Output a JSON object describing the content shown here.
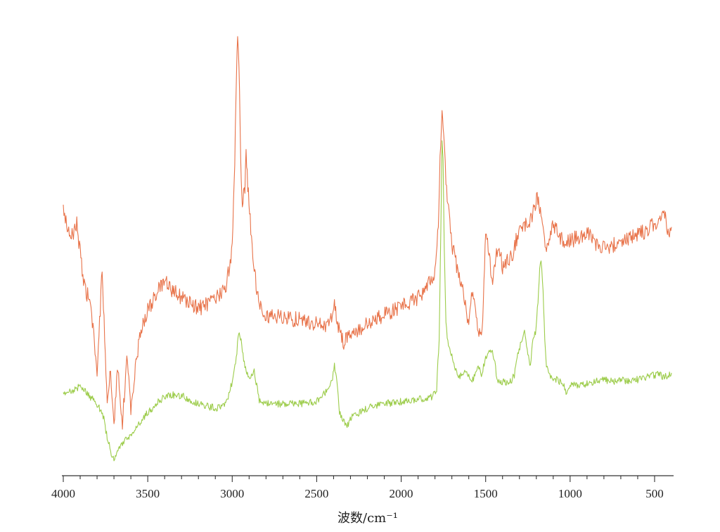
{
  "chart_data": {
    "type": "line",
    "title": "",
    "xlabel": "波数/cm⁻¹",
    "ylabel": "",
    "xlim": [
      4000,
      400
    ],
    "x_reversed": true,
    "ylim": [
      0,
      1
    ],
    "grid": false,
    "legend": "none",
    "x_ticks": [
      4000,
      3500,
      3000,
      2500,
      2000,
      1500,
      1000,
      500
    ],
    "x_tick_labels": [
      "4000",
      "3500",
      "3000",
      "2500",
      "2000",
      "1500",
      "1000",
      "500"
    ],
    "series": [
      {
        "color": "#e8734a",
        "noise": 0.018,
        "points": [
          [
            4000,
            0.59
          ],
          [
            3960,
            0.52
          ],
          [
            3920,
            0.56
          ],
          [
            3880,
            0.42
          ],
          [
            3840,
            0.38
          ],
          [
            3800,
            0.22
          ],
          [
            3770,
            0.45
          ],
          [
            3740,
            0.16
          ],
          [
            3720,
            0.22
          ],
          [
            3700,
            0.1
          ],
          [
            3680,
            0.24
          ],
          [
            3650,
            0.11
          ],
          [
            3620,
            0.26
          ],
          [
            3600,
            0.14
          ],
          [
            3570,
            0.24
          ],
          [
            3540,
            0.32
          ],
          [
            3500,
            0.36
          ],
          [
            3450,
            0.4
          ],
          [
            3400,
            0.425
          ],
          [
            3350,
            0.405
          ],
          [
            3300,
            0.39
          ],
          [
            3200,
            0.365
          ],
          [
            3100,
            0.385
          ],
          [
            3040,
            0.41
          ],
          [
            3000,
            0.5
          ],
          [
            2985,
            0.7
          ],
          [
            2975,
            0.9
          ],
          [
            2968,
            0.99
          ],
          [
            2960,
            0.92
          ],
          [
            2950,
            0.7
          ],
          [
            2940,
            0.61
          ],
          [
            2925,
            0.63
          ],
          [
            2918,
            0.72
          ],
          [
            2908,
            0.64
          ],
          [
            2890,
            0.55
          ],
          [
            2870,
            0.45
          ],
          [
            2840,
            0.38
          ],
          [
            2800,
            0.35
          ],
          [
            2700,
            0.345
          ],
          [
            2600,
            0.34
          ],
          [
            2500,
            0.33
          ],
          [
            2420,
            0.33
          ],
          [
            2395,
            0.38
          ],
          [
            2380,
            0.34
          ],
          [
            2360,
            0.31
          ],
          [
            2340,
            0.29
          ],
          [
            2300,
            0.305
          ],
          [
            2200,
            0.33
          ],
          [
            2100,
            0.35
          ],
          [
            2000,
            0.37
          ],
          [
            1900,
            0.39
          ],
          [
            1850,
            0.41
          ],
          [
            1800,
            0.45
          ],
          [
            1780,
            0.55
          ],
          [
            1770,
            0.7
          ],
          [
            1758,
            0.81
          ],
          [
            1748,
            0.76
          ],
          [
            1735,
            0.65
          ],
          [
            1720,
            0.59
          ],
          [
            1700,
            0.51
          ],
          [
            1680,
            0.48
          ],
          [
            1660,
            0.44
          ],
          [
            1640,
            0.42
          ],
          [
            1620,
            0.37
          ],
          [
            1600,
            0.33
          ],
          [
            1580,
            0.4
          ],
          [
            1560,
            0.35
          ],
          [
            1540,
            0.32
          ],
          [
            1525,
            0.29
          ],
          [
            1510,
            0.42
          ],
          [
            1500,
            0.54
          ],
          [
            1485,
            0.51
          ],
          [
            1470,
            0.46
          ],
          [
            1455,
            0.43
          ],
          [
            1440,
            0.48
          ],
          [
            1420,
            0.5
          ],
          [
            1400,
            0.46
          ],
          [
            1380,
            0.47
          ],
          [
            1360,
            0.48
          ],
          [
            1340,
            0.49
          ],
          [
            1320,
            0.52
          ],
          [
            1300,
            0.545
          ],
          [
            1270,
            0.555
          ],
          [
            1240,
            0.565
          ],
          [
            1210,
            0.59
          ],
          [
            1195,
            0.615
          ],
          [
            1180,
            0.595
          ],
          [
            1160,
            0.54
          ],
          [
            1140,
            0.51
          ],
          [
            1120,
            0.535
          ],
          [
            1100,
            0.555
          ],
          [
            1080,
            0.54
          ],
          [
            1050,
            0.525
          ],
          [
            1020,
            0.515
          ],
          [
            1000,
            0.52
          ],
          [
            960,
            0.525
          ],
          [
            920,
            0.53
          ],
          [
            900,
            0.545
          ],
          [
            870,
            0.525
          ],
          [
            840,
            0.505
          ],
          [
            800,
            0.51
          ],
          [
            760,
            0.505
          ],
          [
            720,
            0.515
          ],
          [
            680,
            0.52
          ],
          [
            640,
            0.525
          ],
          [
            600,
            0.535
          ],
          [
            560,
            0.54
          ],
          [
            520,
            0.555
          ],
          [
            480,
            0.56
          ],
          [
            440,
            0.575
          ],
          [
            420,
            0.54
          ],
          [
            400,
            0.55
          ]
        ]
      },
      {
        "color": "#9ccc4a",
        "noise": 0.008,
        "points": [
          [
            4000,
            0.17
          ],
          [
            3950,
            0.18
          ],
          [
            3900,
            0.19
          ],
          [
            3850,
            0.17
          ],
          [
            3800,
            0.15
          ],
          [
            3760,
            0.12
          ],
          [
            3740,
            0.07
          ],
          [
            3720,
            0.045
          ],
          [
            3700,
            0.02
          ],
          [
            3680,
            0.04
          ],
          [
            3650,
            0.06
          ],
          [
            3600,
            0.08
          ],
          [
            3550,
            0.105
          ],
          [
            3500,
            0.13
          ],
          [
            3450,
            0.15
          ],
          [
            3400,
            0.165
          ],
          [
            3350,
            0.17
          ],
          [
            3300,
            0.168
          ],
          [
            3250,
            0.16
          ],
          [
            3200,
            0.15
          ],
          [
            3100,
            0.14
          ],
          [
            3050,
            0.145
          ],
          [
            3020,
            0.17
          ],
          [
            2995,
            0.21
          ],
          [
            2980,
            0.24
          ],
          [
            2965,
            0.3
          ],
          [
            2955,
            0.31
          ],
          [
            2940,
            0.27
          ],
          [
            2925,
            0.23
          ],
          [
            2910,
            0.22
          ],
          [
            2890,
            0.205
          ],
          [
            2870,
            0.23
          ],
          [
            2855,
            0.19
          ],
          [
            2840,
            0.155
          ],
          [
            2800,
            0.15
          ],
          [
            2700,
            0.15
          ],
          [
            2600,
            0.15
          ],
          [
            2500,
            0.155
          ],
          [
            2450,
            0.175
          ],
          [
            2410,
            0.2
          ],
          [
            2395,
            0.235
          ],
          [
            2380,
            0.195
          ],
          [
            2365,
            0.13
          ],
          [
            2345,
            0.11
          ],
          [
            2320,
            0.1
          ],
          [
            2290,
            0.12
          ],
          [
            2250,
            0.13
          ],
          [
            2200,
            0.14
          ],
          [
            2100,
            0.15
          ],
          [
            2000,
            0.155
          ],
          [
            1900,
            0.16
          ],
          [
            1820,
            0.165
          ],
          [
            1790,
            0.185
          ],
          [
            1775,
            0.3
          ],
          [
            1765,
            0.55
          ],
          [
            1758,
            0.74
          ],
          [
            1752,
            0.7
          ],
          [
            1745,
            0.5
          ],
          [
            1735,
            0.33
          ],
          [
            1720,
            0.28
          ],
          [
            1700,
            0.26
          ],
          [
            1680,
            0.23
          ],
          [
            1660,
            0.215
          ],
          [
            1640,
            0.21
          ],
          [
            1620,
            0.22
          ],
          [
            1600,
            0.21
          ],
          [
            1580,
            0.2
          ],
          [
            1560,
            0.22
          ],
          [
            1540,
            0.23
          ],
          [
            1525,
            0.21
          ],
          [
            1500,
            0.255
          ],
          [
            1480,
            0.27
          ],
          [
            1460,
            0.265
          ],
          [
            1445,
            0.24
          ],
          [
            1430,
            0.2
          ],
          [
            1410,
            0.195
          ],
          [
            1390,
            0.2
          ],
          [
            1370,
            0.195
          ],
          [
            1350,
            0.2
          ],
          [
            1330,
            0.215
          ],
          [
            1310,
            0.26
          ],
          [
            1290,
            0.29
          ],
          [
            1270,
            0.31
          ],
          [
            1250,
            0.26
          ],
          [
            1235,
            0.23
          ],
          [
            1220,
            0.3
          ],
          [
            1205,
            0.31
          ],
          [
            1190,
            0.38
          ],
          [
            1180,
            0.45
          ],
          [
            1172,
            0.48
          ],
          [
            1160,
            0.4
          ],
          [
            1150,
            0.3
          ],
          [
            1140,
            0.24
          ],
          [
            1120,
            0.215
          ],
          [
            1100,
            0.21
          ],
          [
            1080,
            0.205
          ],
          [
            1060,
            0.2
          ],
          [
            1040,
            0.195
          ],
          [
            1020,
            0.175
          ],
          [
            1000,
            0.195
          ],
          [
            950,
            0.19
          ],
          [
            900,
            0.195
          ],
          [
            850,
            0.2
          ],
          [
            800,
            0.205
          ],
          [
            750,
            0.2
          ],
          [
            700,
            0.205
          ],
          [
            650,
            0.2
          ],
          [
            600,
            0.205
          ],
          [
            550,
            0.21
          ],
          [
            500,
            0.215
          ],
          [
            470,
            0.22
          ],
          [
            450,
            0.21
          ],
          [
            420,
            0.215
          ],
          [
            400,
            0.22
          ]
        ]
      }
    ]
  }
}
